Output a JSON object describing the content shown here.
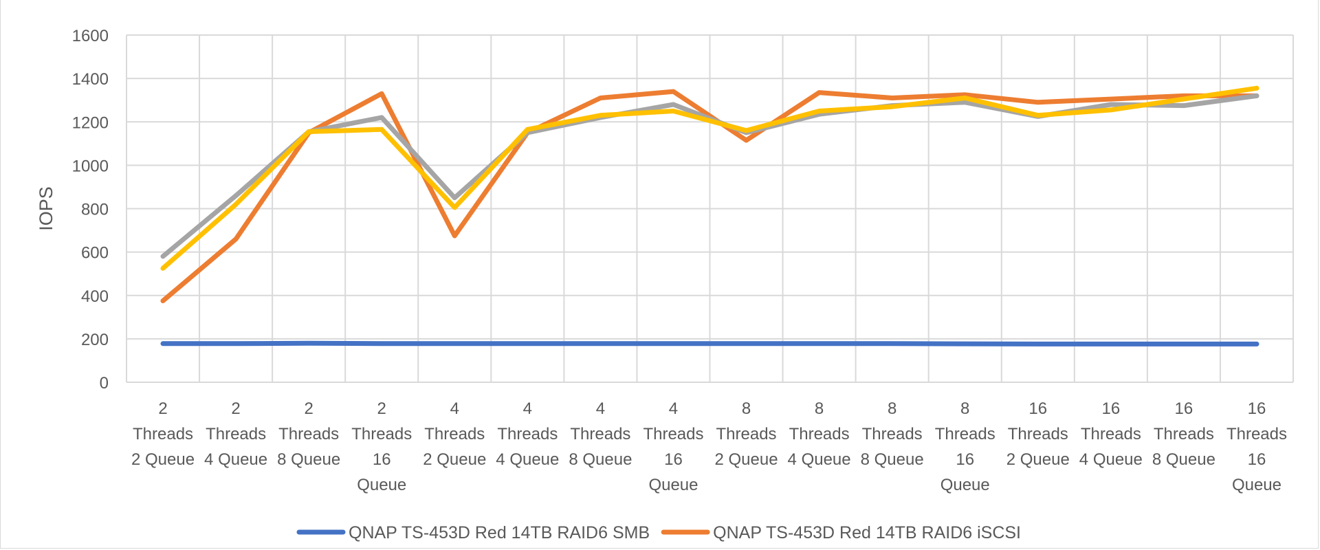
{
  "chart_data": {
    "type": "line",
    "title": "",
    "ylabel": "IOPS",
    "xlabel": "",
    "ylim": [
      0,
      1600
    ],
    "yticks": [
      0,
      200,
      400,
      600,
      800,
      1000,
      1200,
      1400,
      1600
    ],
    "grid": true,
    "legend_position": "bottom",
    "categories": [
      [
        "2",
        "Threads",
        "2 Queue"
      ],
      [
        "2",
        "Threads",
        "4 Queue"
      ],
      [
        "2",
        "Threads",
        "8 Queue"
      ],
      [
        "2",
        "Threads",
        "16",
        "Queue"
      ],
      [
        "4",
        "Threads",
        "2 Queue"
      ],
      [
        "4",
        "Threads",
        "4 Queue"
      ],
      [
        "4",
        "Threads",
        "8 Queue"
      ],
      [
        "4",
        "Threads",
        "16",
        "Queue"
      ],
      [
        "8",
        "Threads",
        "2 Queue"
      ],
      [
        "8",
        "Threads",
        "4 Queue"
      ],
      [
        "8",
        "Threads",
        "8 Queue"
      ],
      [
        "8",
        "Threads",
        "16",
        "Queue"
      ],
      [
        "16",
        "Threads",
        "2 Queue"
      ],
      [
        "16",
        "Threads",
        "4 Queue"
      ],
      [
        "16",
        "Threads",
        "8 Queue"
      ],
      [
        "16",
        "Threads",
        "16",
        "Queue"
      ]
    ],
    "series": [
      {
        "name": "QNAP TS-453D Red 14TB RAID6 SMB",
        "color": "#4472c4",
        "show_in_legend": true,
        "values": [
          178,
          178,
          180,
          178,
          178,
          178,
          178,
          178,
          178,
          178,
          178,
          177,
          176,
          176,
          176,
          176
        ]
      },
      {
        "name": "QNAP TS-453D Red 14TB RAID6 iSCSI",
        "color": "#ed7d31",
        "show_in_legend": true,
        "values": [
          375,
          660,
          1150,
          1330,
          675,
          1150,
          1310,
          1340,
          1115,
          1335,
          1310,
          1325,
          1290,
          1305,
          1320,
          1320
        ]
      },
      {
        "name": "",
        "color": "#a5a5a5",
        "show_in_legend": false,
        "values": [
          580,
          860,
          1155,
          1220,
          850,
          1150,
          1220,
          1280,
          1150,
          1235,
          1275,
          1290,
          1225,
          1280,
          1275,
          1320
        ]
      },
      {
        "name": "",
        "color": "#ffc000",
        "show_in_legend": false,
        "values": [
          525,
          820,
          1155,
          1165,
          805,
          1165,
          1230,
          1250,
          1160,
          1250,
          1270,
          1310,
          1230,
          1255,
          1305,
          1355
        ]
      }
    ]
  }
}
